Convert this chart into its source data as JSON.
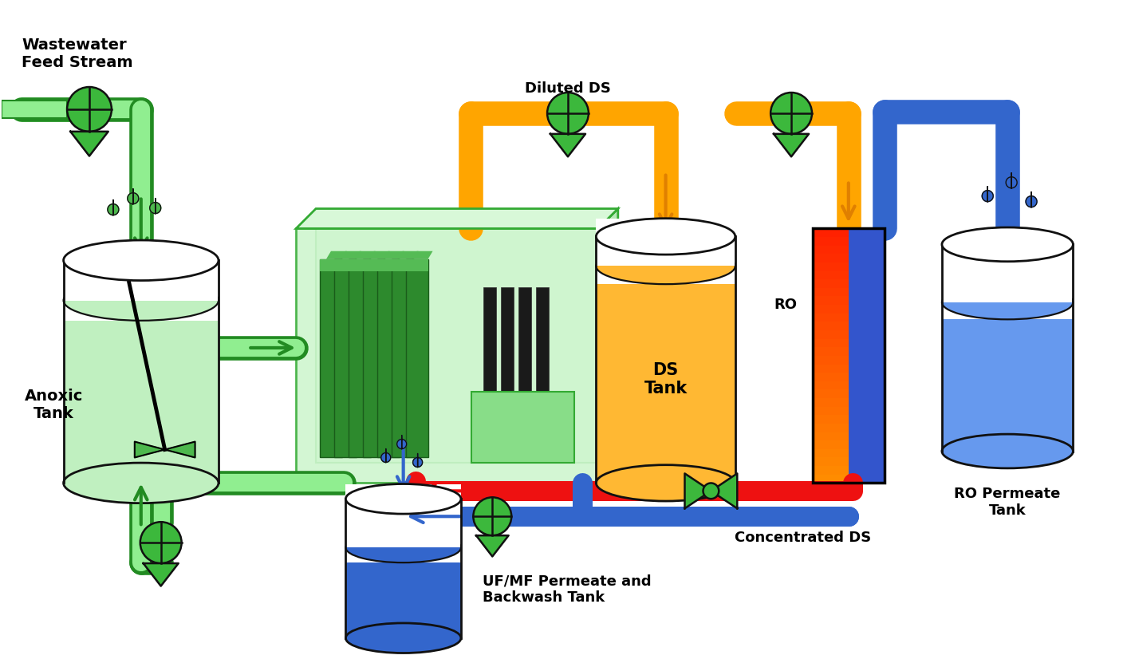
{
  "bg_color": "#ffffff",
  "labels": {
    "wastewater": "Wastewater\nFeed Stream",
    "anoxic": "Anoxic\nTank",
    "diluted_ds": "Diluted DS",
    "ds_tank": "DS\nTank",
    "ro": "RO",
    "ro_permeate": "RO Permeate\nTank",
    "concentrated_ds": "Concentrated DS",
    "uf_mf": "UF/MF Permeate and\nBackwash Tank"
  },
  "colors": {
    "green_light": "#90EE90",
    "green_mid": "#4db84d",
    "green_dark": "#228B22",
    "green_pump": "#3cb83c",
    "green_tank": "#c0f0c0",
    "green_tank_dark": "#90d890",
    "orange": "#FFA500",
    "orange_dark": "#e08000",
    "blue": "#3366CC",
    "blue_light": "#6699EE",
    "blue_very_light": "#aaccff",
    "red": "#EE1111",
    "black": "#111111",
    "white": "#ffffff",
    "mbr_fill": "#ccf5cc",
    "mbr_border": "#33aa33",
    "membrane_green": "#2d8a2d",
    "membrane_light": "#55bb55",
    "ro_orange_top": "#FF8800",
    "ro_orange_bot": "#FF3300",
    "ro_blue": "#3355CC",
    "ds_fill": "#FFB833",
    "ds_fill_top": "#FFD700"
  }
}
